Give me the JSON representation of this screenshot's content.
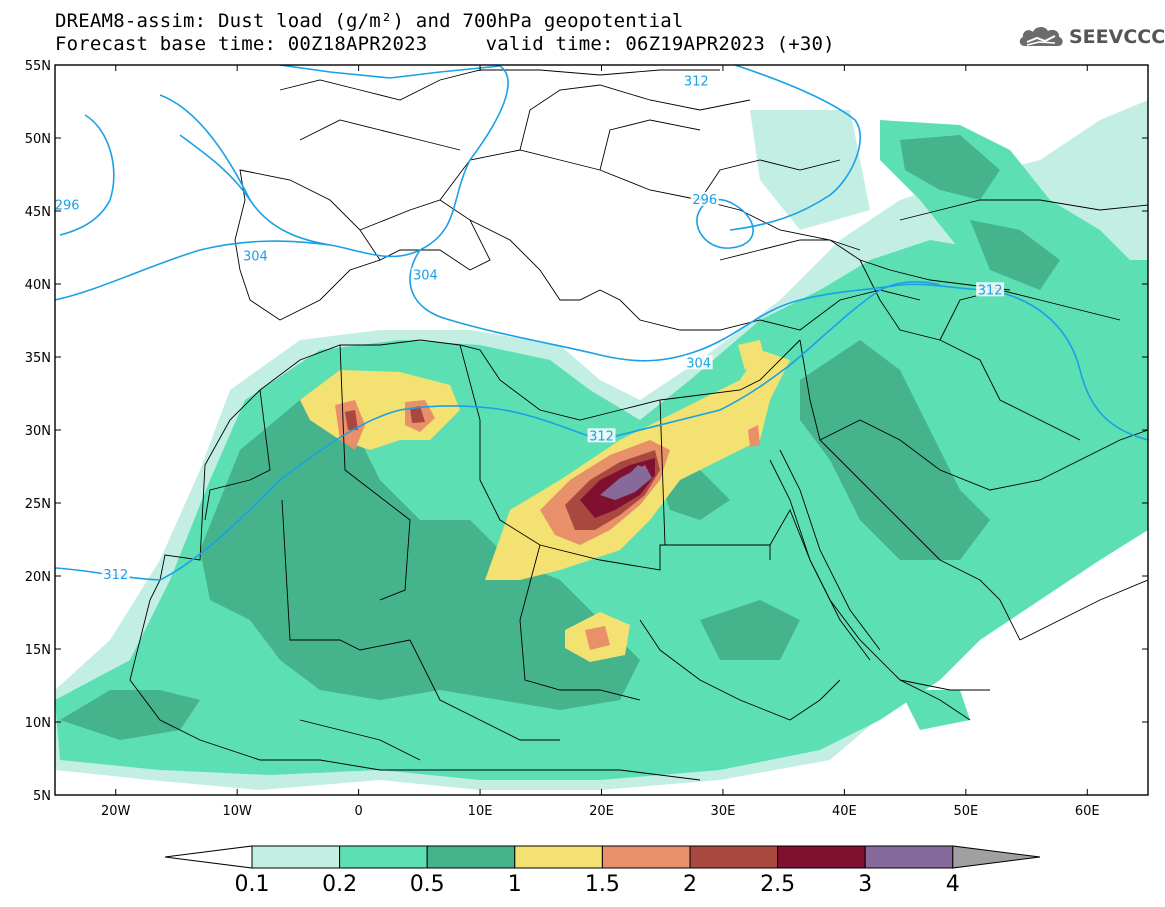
{
  "title": {
    "line1": "DREAM8-assim: Dust load (g/m²) and 700hPa geopotential",
    "line2_base": "Forecast base time: 00Z18APR2023",
    "line2_valid": "valid time: 06Z19APR2023 (+30)"
  },
  "logo": {
    "text": "SEEVCCC",
    "icon": "cloud-logo-icon"
  },
  "axes": {
    "lat_labels": [
      "55N",
      "50N",
      "45N",
      "40N",
      "35N",
      "30N",
      "25N",
      "20N",
      "15N",
      "10N",
      "5N"
    ],
    "lon_labels": [
      "20W",
      "10W",
      "0",
      "10E",
      "20E",
      "30E",
      "40E",
      "50E",
      "60E"
    ],
    "lat_range": [
      5,
      55
    ],
    "lon_range": [
      -25,
      65
    ]
  },
  "contours": [
    {
      "label": "312",
      "lon": 27.8,
      "lat": 53.8
    },
    {
      "label": "296",
      "lon": -24.0,
      "lat": 45.3
    },
    {
      "label": "304",
      "lon": -8.5,
      "lat": 41.8
    },
    {
      "label": "304",
      "lon": 5.5,
      "lat": 40.5
    },
    {
      "label": "296",
      "lon": 28.5,
      "lat": 45.7
    },
    {
      "label": "312",
      "lon": 52.0,
      "lat": 39.5
    },
    {
      "label": "304",
      "lon": 28.0,
      "lat": 34.5
    },
    {
      "label": "312",
      "lon": 20.0,
      "lat": 29.5
    },
    {
      "label": "312",
      "lon": -20.0,
      "lat": 20.0
    }
  ],
  "colorbar": {
    "ticks": [
      "0.1",
      "0.2",
      "0.5",
      "1",
      "1.5",
      "2",
      "2.5",
      "3",
      "4"
    ],
    "colors": [
      "#c3eee4",
      "#5ddfb4",
      "#45b38c",
      "#f3e271",
      "#e8906a",
      "#a8483e",
      "#7f1030",
      "#876a9c"
    ],
    "under_color": "#ffffff",
    "over_color": "#a0a0a0"
  },
  "palette": {
    "land_bg": "#ffffff",
    "contour": "#1ba0e6",
    "borders": "#000000"
  }
}
